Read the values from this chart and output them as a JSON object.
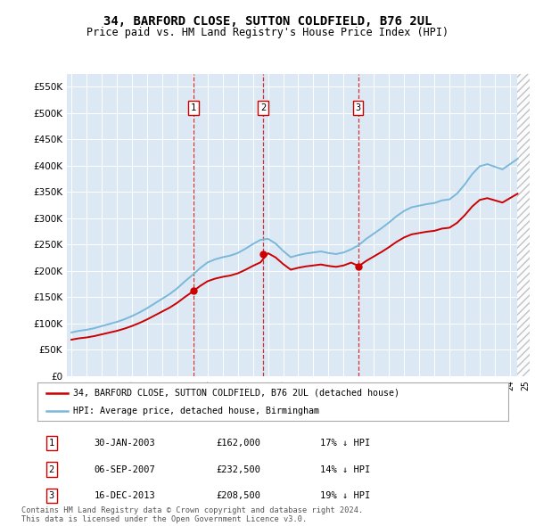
{
  "title": "34, BARFORD CLOSE, SUTTON COLDFIELD, B76 2UL",
  "subtitle": "Price paid vs. HM Land Registry's House Price Index (HPI)",
  "legend_line1": "34, BARFORD CLOSE, SUTTON COLDFIELD, B76 2UL (detached house)",
  "legend_line2": "HPI: Average price, detached house, Birmingham",
  "footer1": "Contains HM Land Registry data © Crown copyright and database right 2024.",
  "footer2": "This data is licensed under the Open Government Licence v3.0.",
  "transactions": [
    {
      "num": 1,
      "date": "30-JAN-2003",
      "price": "£162,000",
      "hpi": "17% ↓ HPI",
      "year": 2003.08
    },
    {
      "num": 2,
      "date": "06-SEP-2007",
      "price": "£232,500",
      "hpi": "14% ↓ HPI",
      "year": 2007.68
    },
    {
      "num": 3,
      "date": "16-DEC-2013",
      "price": "£208,500",
      "hpi": "19% ↓ HPI",
      "year": 2013.96
    }
  ],
  "sale_years": [
    2003.08,
    2007.68,
    2013.96
  ],
  "sale_prices": [
    162000,
    232500,
    208500
  ],
  "hpi_color": "#7ab8d9",
  "price_color": "#cc0000",
  "background_color": "#dce9f5",
  "ylim": [
    0,
    575000
  ],
  "yticks": [
    0,
    50000,
    100000,
    150000,
    200000,
    250000,
    300000,
    350000,
    400000,
    450000,
    500000,
    550000
  ],
  "xmin": 1994.7,
  "xmax": 2025.3
}
